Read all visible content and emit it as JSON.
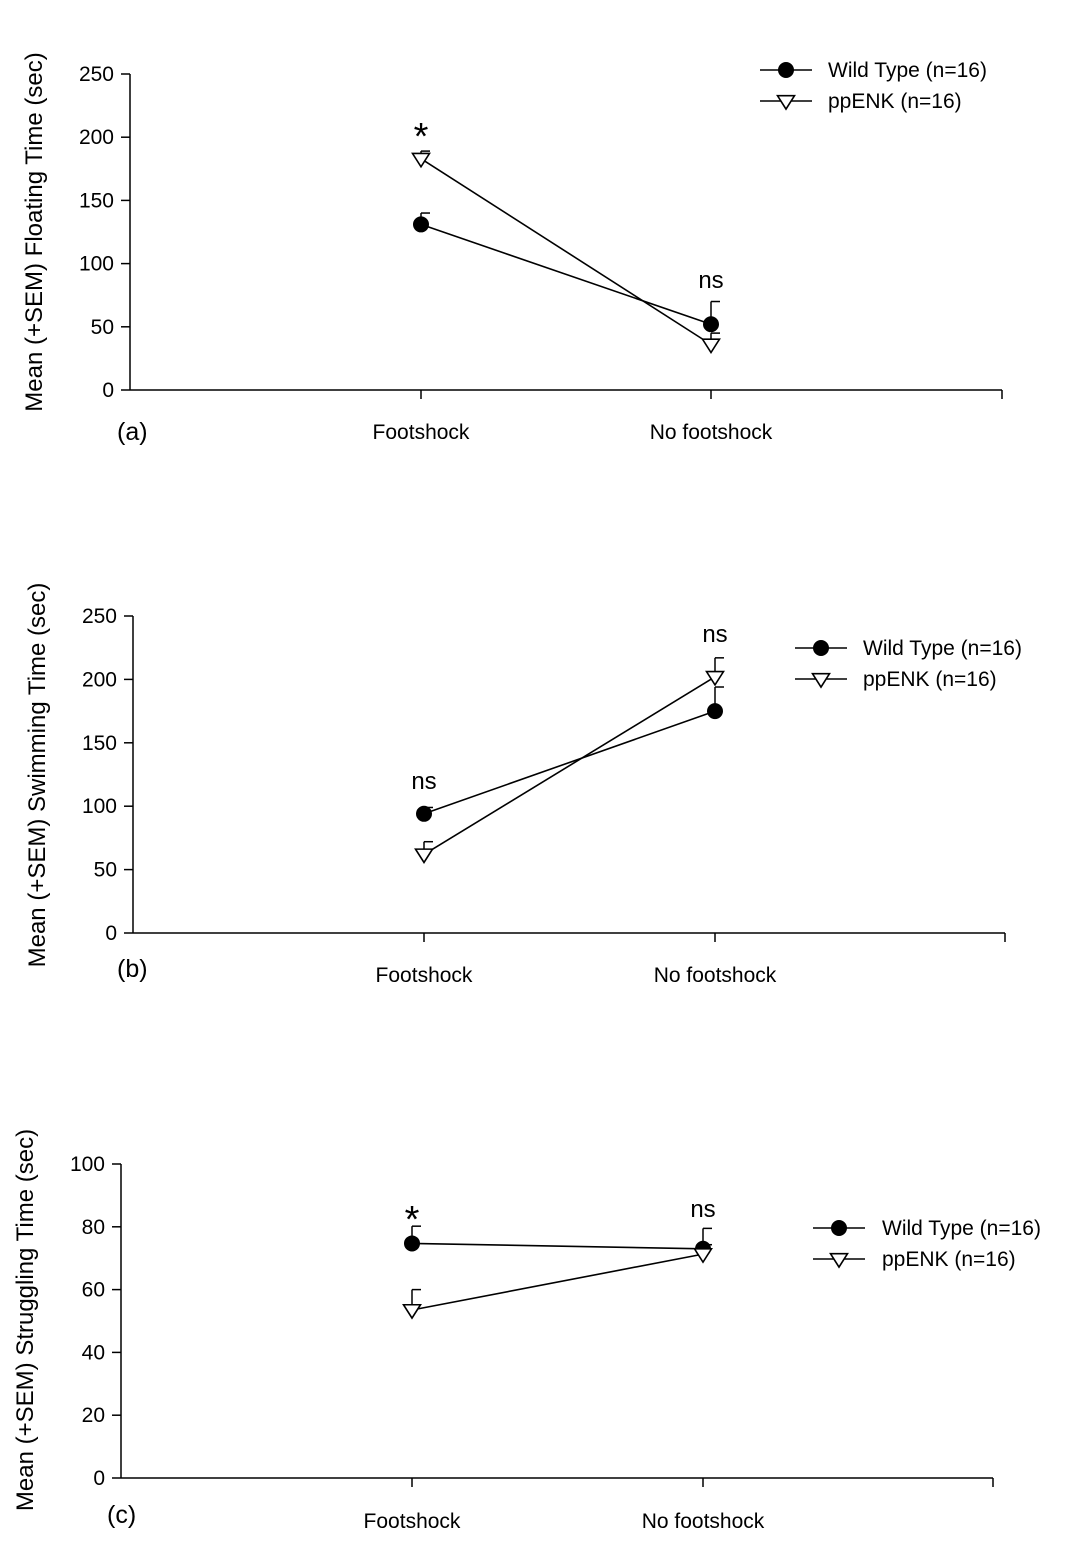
{
  "chart_data": [
    {
      "type": "line",
      "panel_label": "(a)",
      "title": "",
      "xlabel": "",
      "ylabel": "Mean (+SEM) Floating Time (sec)",
      "ylim": [
        0,
        250
      ],
      "yticks": [
        0,
        50,
        100,
        150,
        200,
        250
      ],
      "categories": [
        "Footshock",
        "No footshock"
      ],
      "series": [
        {
          "name": "Wild Type (n=16)",
          "marker": "filled-circle",
          "values": [
            131,
            52
          ],
          "sem": [
            9,
            18
          ]
        },
        {
          "name": "ppENK (n=16)",
          "marker": "open-triangle-down",
          "values": [
            183,
            36
          ],
          "sem": [
            6,
            9
          ]
        }
      ],
      "annotations": [
        "*",
        "ns"
      ],
      "legend_position": "top-right",
      "grid": false
    },
    {
      "type": "line",
      "panel_label": "(b)",
      "title": "",
      "xlabel": "",
      "ylabel": "Mean (+SEM) Swimming Time (sec)",
      "ylim": [
        0,
        250
      ],
      "yticks": [
        0,
        50,
        100,
        150,
        200,
        250
      ],
      "categories": [
        "Footshock",
        "No footshock"
      ],
      "series": [
        {
          "name": "Wild Type (n=16)",
          "marker": "filled-circle",
          "values": [
            94,
            175
          ],
          "sem": [
            5,
            19
          ]
        },
        {
          "name": "ppENK (n=16)",
          "marker": "open-triangle-down",
          "values": [
            62,
            202
          ],
          "sem": [
            10,
            15
          ]
        }
      ],
      "annotations": [
        "ns",
        "ns"
      ],
      "legend_position": "top-right",
      "grid": false
    },
    {
      "type": "line",
      "panel_label": "(c)",
      "title": "",
      "xlabel": "",
      "ylabel": "Mean (+SEM) Struggling Time (sec)",
      "ylim": [
        0,
        100
      ],
      "yticks": [
        0,
        20,
        40,
        60,
        80,
        100
      ],
      "categories": [
        "Footshock",
        "No footshock"
      ],
      "series": [
        {
          "name": "Wild Type (n=16)",
          "marker": "filled-circle",
          "values": [
            74.7,
            73
          ],
          "sem": [
            5.5,
            6.5
          ]
        },
        {
          "name": "ppENK (n=16)",
          "marker": "open-triangle-down",
          "values": [
            53.5,
            71.3
          ],
          "sem": [
            6.5,
            3
          ]
        }
      ],
      "annotations": [
        "*",
        "ns"
      ],
      "legend_position": "right",
      "grid": false
    }
  ]
}
